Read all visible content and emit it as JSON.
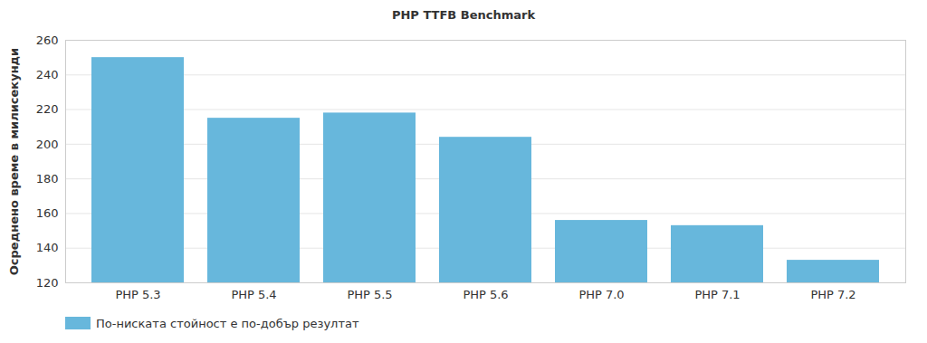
{
  "chart_data": {
    "type": "bar",
    "title": "PHP TTFB Benchmark",
    "y_label": "Осреднено време в милисекунди",
    "categories": [
      "PHP 5.3",
      "PHP 5.4",
      "PHP 5.5",
      "PHP 5.6",
      "PHP 7.0",
      "PHP 7.1",
      "PHP 7.2"
    ],
    "series": [
      {
        "name": "По-ниската стойност е по-добър резултат",
        "color": "#67b7dc",
        "values": [
          250,
          215,
          218,
          204,
          156,
          153,
          133
        ]
      }
    ],
    "ylim": [
      120,
      260
    ],
    "yticks": [
      120,
      140,
      160,
      180,
      200,
      220,
      240,
      260
    ],
    "grid": true,
    "legend": "bottom"
  }
}
